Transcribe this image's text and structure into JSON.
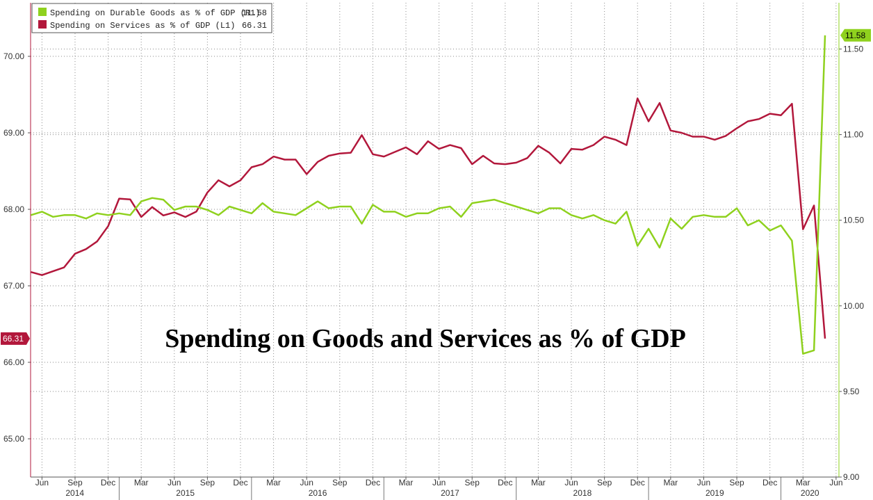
{
  "chart_data": {
    "type": "line",
    "title": "Spending on Goods and Services as % of GDP",
    "x": [
      "2014-05",
      "2014-06",
      "2014-07",
      "2014-08",
      "2014-09",
      "2014-10",
      "2014-11",
      "2014-12",
      "2015-01",
      "2015-02",
      "2015-03",
      "2015-04",
      "2015-05",
      "2015-06",
      "2015-07",
      "2015-08",
      "2015-09",
      "2015-10",
      "2015-11",
      "2015-12",
      "2016-01",
      "2016-02",
      "2016-03",
      "2016-04",
      "2016-05",
      "2016-06",
      "2016-07",
      "2016-08",
      "2016-09",
      "2016-10",
      "2016-11",
      "2016-12",
      "2017-01",
      "2017-02",
      "2017-03",
      "2017-04",
      "2017-05",
      "2017-06",
      "2017-07",
      "2017-08",
      "2017-09",
      "2017-10",
      "2017-11",
      "2017-12",
      "2018-01",
      "2018-02",
      "2018-03",
      "2018-04",
      "2018-05",
      "2018-06",
      "2018-07",
      "2018-08",
      "2018-09",
      "2018-10",
      "2018-11",
      "2018-12",
      "2019-01",
      "2019-02",
      "2019-03",
      "2019-04",
      "2019-05",
      "2019-06",
      "2019-07",
      "2019-08",
      "2019-09",
      "2019-10",
      "2019-11",
      "2019-12",
      "2020-01",
      "2020-02",
      "2020-03",
      "2020-04",
      "2020-05"
    ],
    "series": [
      {
        "name": "Spending on Durable Goods as % of GDP (R1)",
        "axis": "right",
        "color": "#8fd11e",
        "last_value": "11.58",
        "values": [
          10.53,
          10.55,
          10.52,
          10.53,
          10.53,
          10.51,
          10.54,
          10.53,
          10.54,
          10.53,
          10.61,
          10.63,
          10.62,
          10.56,
          10.58,
          10.58,
          10.56,
          10.53,
          10.58,
          10.56,
          10.54,
          10.6,
          10.55,
          10.54,
          10.53,
          10.57,
          10.61,
          10.57,
          10.58,
          10.58,
          10.48,
          10.59,
          10.55,
          10.55,
          10.52,
          10.54,
          10.54,
          10.57,
          10.58,
          10.52,
          10.6,
          10.61,
          10.62,
          10.6,
          10.58,
          10.56,
          10.54,
          10.57,
          10.57,
          10.53,
          10.51,
          10.53,
          10.5,
          10.48,
          10.55,
          10.35,
          10.45,
          10.34,
          10.51,
          10.45,
          10.52,
          10.53,
          10.52,
          10.52,
          10.57,
          10.47,
          10.5,
          10.44,
          10.47,
          10.38,
          9.72,
          9.74,
          11.58
        ]
      },
      {
        "name": "Spending on Services as % of GDP (L1)",
        "axis": "left",
        "color": "#b2173b",
        "last_value": "66.31",
        "values": [
          67.18,
          67.14,
          67.19,
          67.24,
          67.42,
          67.48,
          67.58,
          67.78,
          68.14,
          68.13,
          67.9,
          68.03,
          67.92,
          67.96,
          67.9,
          67.97,
          68.22,
          68.38,
          68.3,
          68.38,
          68.55,
          68.59,
          68.69,
          68.65,
          68.65,
          68.46,
          68.62,
          68.7,
          68.73,
          68.74,
          68.97,
          68.72,
          68.69,
          68.75,
          68.81,
          68.72,
          68.89,
          68.79,
          68.84,
          68.8,
          68.59,
          68.7,
          68.6,
          68.59,
          68.61,
          68.67,
          68.83,
          68.74,
          68.6,
          68.79,
          68.78,
          68.84,
          68.95,
          68.91,
          68.84,
          69.45,
          69.15,
          69.39,
          69.03,
          69.0,
          68.95,
          68.95,
          68.91,
          68.96,
          69.06,
          69.15,
          69.18,
          69.25,
          69.23,
          69.38,
          67.74,
          68.05,
          66.31
        ]
      }
    ],
    "left_axis": {
      "min": 64.5,
      "max": 70.7,
      "ticks": [
        "65.00",
        "66.00",
        "67.00",
        "68.00",
        "69.00",
        "70.00"
      ]
    },
    "right_axis": {
      "min": 9.0,
      "max": 11.77,
      "ticks": [
        "9.00",
        "9.50",
        "10.00",
        "10.50",
        "11.00",
        "11.50"
      ]
    },
    "month_ticks": [
      {
        "label": "Jun",
        "date": "2014-06"
      },
      {
        "label": "Sep",
        "date": "2014-09"
      },
      {
        "label": "Dec",
        "date": "2014-12"
      },
      {
        "label": "Mar",
        "date": "2015-03"
      },
      {
        "label": "Jun",
        "date": "2015-06"
      },
      {
        "label": "Sep",
        "date": "2015-09"
      },
      {
        "label": "Dec",
        "date": "2015-12"
      },
      {
        "label": "Mar",
        "date": "2016-03"
      },
      {
        "label": "Jun",
        "date": "2016-06"
      },
      {
        "label": "Sep",
        "date": "2016-09"
      },
      {
        "label": "Dec",
        "date": "2016-12"
      },
      {
        "label": "Mar",
        "date": "2017-03"
      },
      {
        "label": "Jun",
        "date": "2017-06"
      },
      {
        "label": "Sep",
        "date": "2017-09"
      },
      {
        "label": "Dec",
        "date": "2017-12"
      },
      {
        "label": "Mar",
        "date": "2018-03"
      },
      {
        "label": "Jun",
        "date": "2018-06"
      },
      {
        "label": "Sep",
        "date": "2018-09"
      },
      {
        "label": "Dec",
        "date": "2018-12"
      },
      {
        "label": "Mar",
        "date": "2019-03"
      },
      {
        "label": "Jun",
        "date": "2019-06"
      },
      {
        "label": "Sep",
        "date": "2019-09"
      },
      {
        "label": "Dec",
        "date": "2019-12"
      },
      {
        "label": "Mar",
        "date": "2020-03"
      },
      {
        "label": "Jun",
        "date": "2020-06"
      }
    ],
    "years": [
      "2014",
      "2015",
      "2016",
      "2017",
      "2018",
      "2019",
      "2020"
    ],
    "grid": true,
    "legend_position": "top-left"
  }
}
